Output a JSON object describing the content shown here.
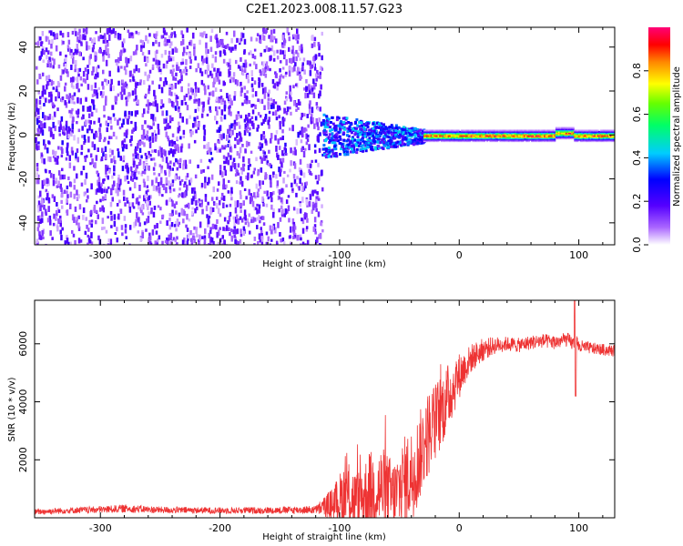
{
  "title": "C2E1.2023.008.11.57.G23",
  "chart_data": [
    {
      "type": "heatmap",
      "xlabel": "Height of straight line (km)",
      "ylabel": "Frequency (Hz)",
      "xlim": [
        -355,
        130
      ],
      "ylim": [
        -50,
        49
      ],
      "xticks": [
        -300,
        -200,
        -100,
        0,
        100
      ],
      "xtick_labels": [
        "-300",
        "-200",
        "-100",
        "0",
        "100"
      ],
      "yticks": [
        -40,
        -20,
        0,
        20,
        40
      ],
      "ytick_labels": [
        "-40",
        "-20",
        "0",
        "20",
        "40"
      ],
      "colorbar": {
        "label": "Normalized spectral amplitude",
        "range": [
          0,
          1
        ],
        "ticks": [
          0.0,
          0.2,
          0.4,
          0.6,
          0.8
        ],
        "tick_labels": [
          "0.0",
          "0.2",
          "0.4",
          "0.6",
          "0.8"
        ],
        "colormap": [
          "#ffffff",
          "#8800ff",
          "#0000ff",
          "#00ffff",
          "#00ff00",
          "#ffff00",
          "#ff8800",
          "#ff0000",
          "#ff0077"
        ]
      },
      "features": [
        {
          "region": "noise",
          "x_range": [
            -355,
            -115
          ],
          "y_range": [
            -50,
            49
          ],
          "amplitude": 0.1
        },
        {
          "region": "transition",
          "x_range": [
            -115,
            -30
          ],
          "y_range": [
            -10,
            10
          ],
          "amplitude": 0.3
        },
        {
          "region": "carrier",
          "x_range": [
            -30,
            130
          ],
          "y_center": 0,
          "amplitude": 0.95
        }
      ]
    },
    {
      "type": "line",
      "xlabel": "Height of straight line (km)",
      "ylabel": "SNR (10 * v/v)",
      "xlim": [
        -355,
        130
      ],
      "ylim": [
        0,
        7500
      ],
      "xticks": [
        -300,
        -200,
        -100,
        0,
        100
      ],
      "xtick_labels": [
        "-300",
        "-200",
        "-100",
        "0",
        "100"
      ],
      "yticks": [
        2000,
        4000,
        6000
      ],
      "ytick_labels": [
        "2000",
        "4000",
        "6000"
      ],
      "series": [
        {
          "color": "#ee3333",
          "x": [
            -355,
            -330,
            -300,
            -280,
            -250,
            -200,
            -150,
            -120,
            -105,
            -95,
            -85,
            -75,
            -65,
            -55,
            -45,
            -40,
            -35,
            -30,
            -25,
            -20,
            -15,
            -10,
            -5,
            0,
            5,
            10,
            20,
            30,
            40,
            50,
            60,
            70,
            80,
            90,
            95,
            98,
            100,
            110,
            120,
            130
          ],
          "y": [
            200,
            250,
            280,
            320,
            270,
            250,
            260,
            280,
            500,
            800,
            600,
            900,
            1000,
            700,
            1300,
            1500,
            1900,
            2500,
            3000,
            3300,
            3700,
            4100,
            4500,
            4900,
            5200,
            5500,
            5800,
            5950,
            6000,
            5950,
            6050,
            6100,
            6050,
            6150,
            6000,
            6100,
            5900,
            5850,
            5800,
            5750
          ],
          "noise": [
            100,
            110,
            120,
            140,
            120,
            110,
            120,
            140,
            600,
            1200,
            1000,
            1400,
            1500,
            1300,
            1600,
            1600,
            1600,
            1500,
            1500,
            1400,
            1300,
            1200,
            1000,
            800,
            600,
            500,
            400,
            300,
            250,
            250,
            250,
            250,
            250,
            250,
            250,
            250,
            250,
            200,
            200,
            200
          ]
        }
      ]
    }
  ]
}
